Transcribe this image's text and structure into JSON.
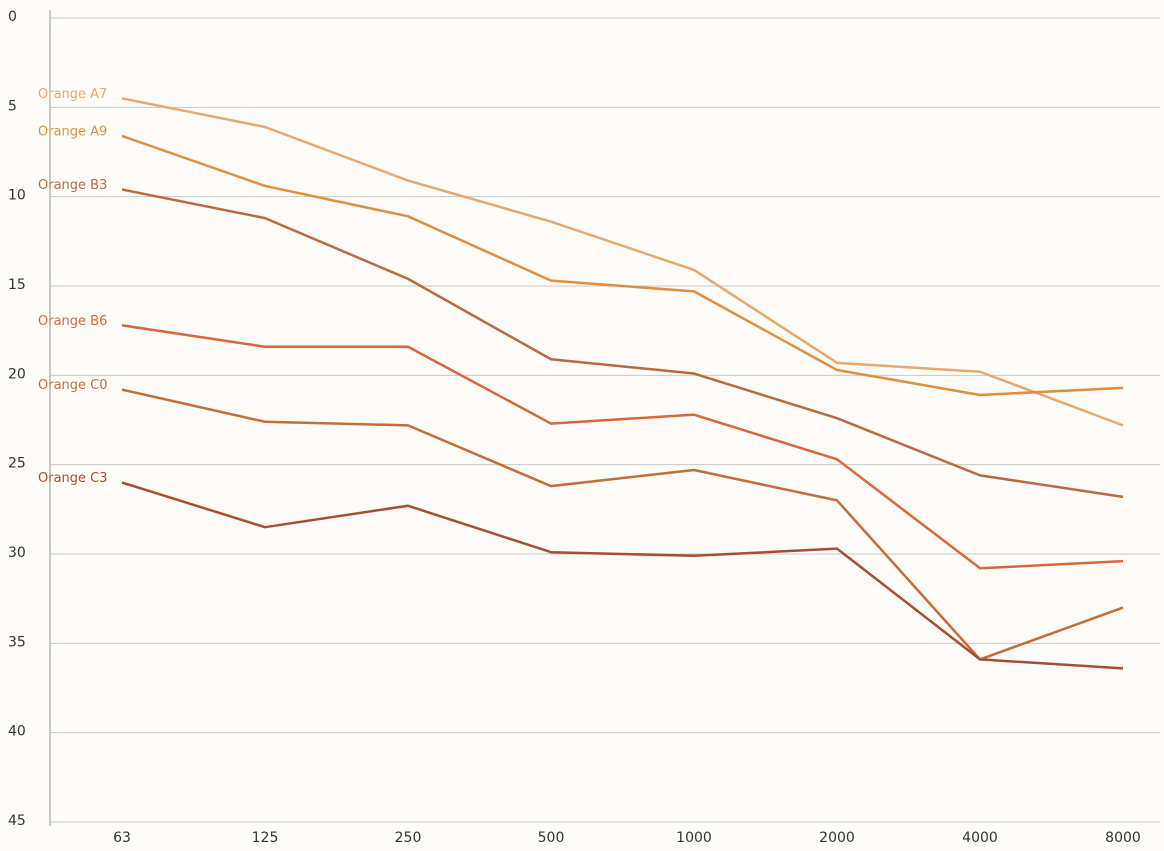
{
  "chart_data": {
    "type": "line",
    "categories": [
      "63",
      "125",
      "250",
      "500",
      "1000",
      "2000",
      "4000",
      "8000"
    ],
    "series": [
      {
        "name": "Orange A7",
        "color": "#e8a870",
        "values": [
          4.5,
          6.1,
          9.1,
          11.4,
          14.1,
          19.3,
          19.8,
          22.8
        ]
      },
      {
        "name": "Orange A9",
        "color": "#e08f40",
        "values": [
          6.6,
          9.4,
          11.1,
          14.7,
          15.3,
          19.7,
          21.1,
          20.7
        ]
      },
      {
        "name": "Orange B3",
        "color": "#b96a40",
        "values": [
          9.6,
          11.2,
          14.6,
          19.1,
          19.9,
          22.4,
          25.6,
          26.8
        ]
      },
      {
        "name": "Orange B6",
        "color": "#d9673a",
        "values": [
          17.2,
          18.4,
          18.4,
          22.7,
          22.2,
          24.7,
          30.8,
          30.4
        ]
      },
      {
        "name": "Orange C0",
        "color": "#c56d38",
        "values": [
          20.8,
          22.6,
          22.8,
          26.2,
          25.3,
          27.0,
          35.9,
          33.0
        ]
      },
      {
        "name": "Orange C3",
        "color": "#a84e30",
        "values": [
          26.0,
          28.5,
          27.3,
          29.9,
          30.1,
          29.7,
          35.9,
          36.4
        ]
      }
    ],
    "ylim": [
      0,
      45
    ],
    "y_inverted": true,
    "yticks": [
      0,
      5,
      10,
      15,
      20,
      25,
      30,
      35,
      40,
      45
    ],
    "grid": true
  }
}
